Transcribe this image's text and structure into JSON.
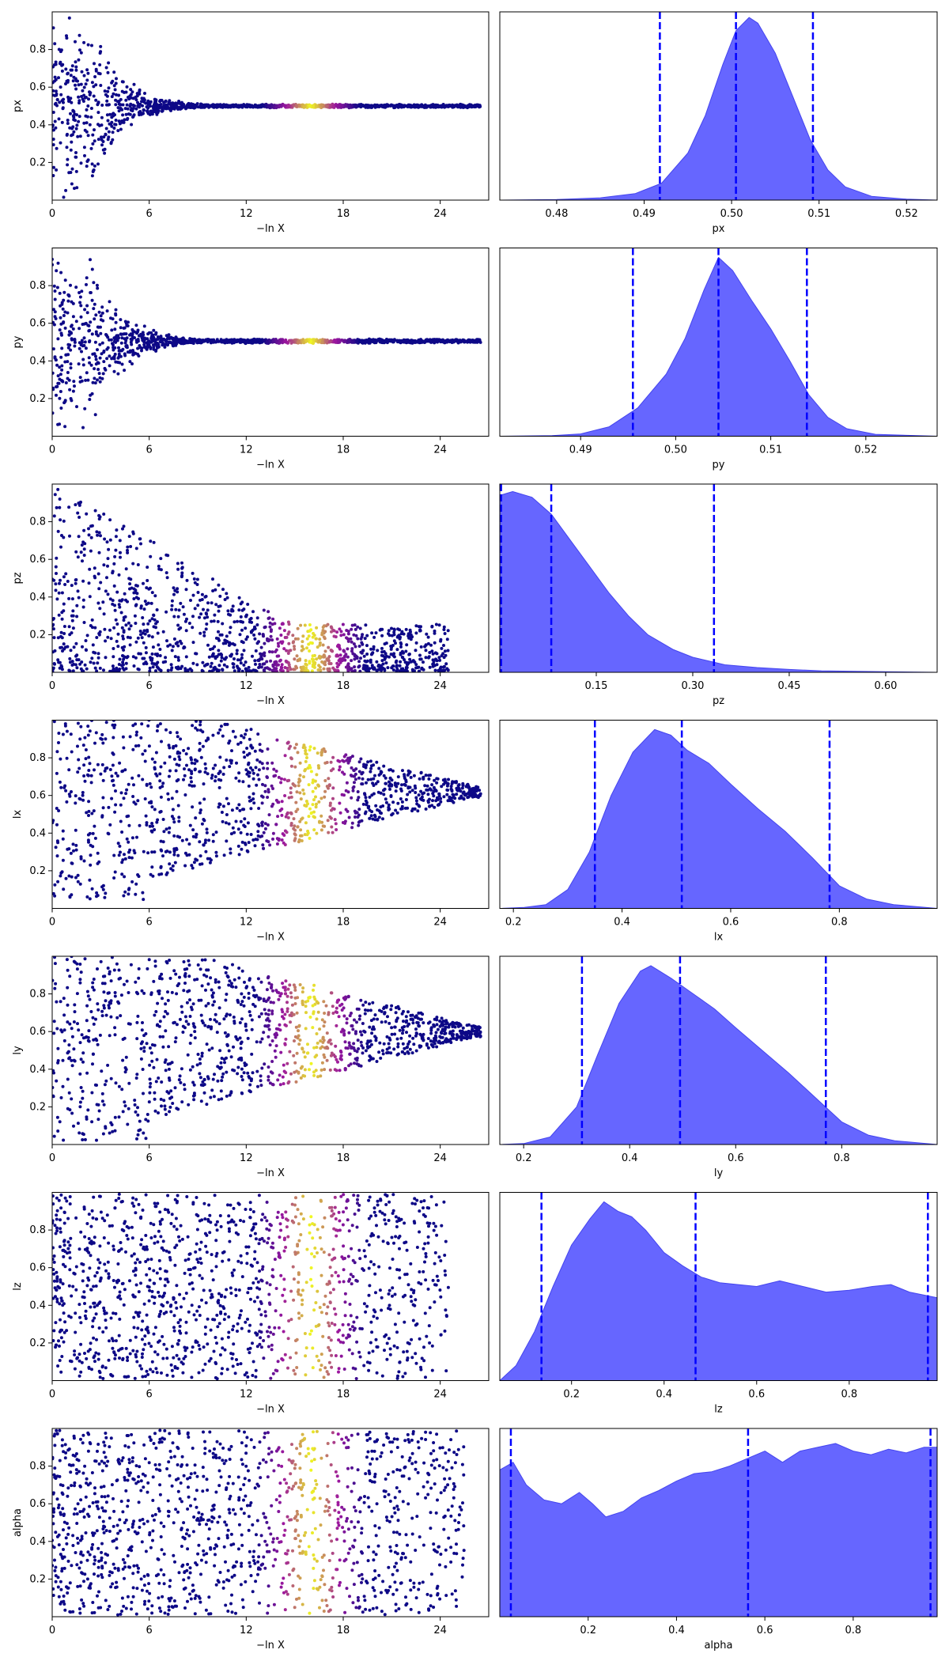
{
  "chart_data": {
    "type": "trace_plot_grid",
    "colors": {
      "kde_fill": "#6666ff",
      "kde_edge": "#4444ee",
      "quantile_line": "#0000ff",
      "scatter_low": "#0d0887",
      "scatter_mid": "#9c179e",
      "scatter_high": "#f0f921",
      "axis": "#000000"
    },
    "scatter_xlabel": "−ln X",
    "scatter_xticks": [
      "0",
      "6",
      "12",
      "18",
      "24"
    ],
    "scatter_xlim": [
      0,
      27
    ],
    "scatter_yticks": [
      "0.2",
      "0.4",
      "0.6",
      "0.8"
    ],
    "scatter_ylim": [
      0,
      1
    ],
    "rows": [
      {
        "param": "px",
        "scatter_shape": "funnel",
        "scatter": {
          "converge": 0.5,
          "end_width": 0.01,
          "x_end": 26.5,
          "hot_center": 16.0,
          "hot_width": 1.5
        },
        "kde_xlim": [
          0.4735,
          0.5235
        ],
        "kde_xticks": [
          "0.48",
          "0.49",
          "0.50",
          "0.51",
          "0.52"
        ],
        "kde_xtick_values": [
          0.48,
          0.49,
          0.5,
          0.51,
          0.52
        ],
        "kde_quantiles": [
          0.4918,
          0.5005,
          0.5093
        ],
        "kde_points": [
          [
            0.4735,
            0.0
          ],
          [
            0.48,
            0.003
          ],
          [
            0.485,
            0.012
          ],
          [
            0.489,
            0.035
          ],
          [
            0.492,
            0.09
          ],
          [
            0.495,
            0.25
          ],
          [
            0.497,
            0.45
          ],
          [
            0.499,
            0.72
          ],
          [
            0.5005,
            0.9
          ],
          [
            0.502,
            0.97
          ],
          [
            0.503,
            0.94
          ],
          [
            0.505,
            0.78
          ],
          [
            0.507,
            0.55
          ],
          [
            0.509,
            0.32
          ],
          [
            0.511,
            0.16
          ],
          [
            0.513,
            0.07
          ],
          [
            0.516,
            0.02
          ],
          [
            0.52,
            0.005
          ],
          [
            0.5235,
            0.0
          ]
        ]
      },
      {
        "param": "py",
        "scatter_shape": "funnel",
        "scatter": {
          "converge": 0.505,
          "end_width": 0.012,
          "x_end": 26.5,
          "hot_center": 16.0,
          "hot_width": 1.5
        },
        "kde_xlim": [
          0.4815,
          0.5275
        ],
        "kde_xticks": [
          "0.49",
          "0.50",
          "0.51",
          "0.52"
        ],
        "kde_xtick_values": [
          0.49,
          0.5,
          0.51,
          0.52
        ],
        "kde_quantiles": [
          0.4955,
          0.5045,
          0.5138
        ],
        "kde_points": [
          [
            0.4815,
            0.0
          ],
          [
            0.487,
            0.003
          ],
          [
            0.49,
            0.012
          ],
          [
            0.493,
            0.05
          ],
          [
            0.496,
            0.15
          ],
          [
            0.499,
            0.33
          ],
          [
            0.501,
            0.52
          ],
          [
            0.503,
            0.78
          ],
          [
            0.5045,
            0.95
          ],
          [
            0.506,
            0.88
          ],
          [
            0.508,
            0.72
          ],
          [
            0.51,
            0.57
          ],
          [
            0.512,
            0.4
          ],
          [
            0.514,
            0.22
          ],
          [
            0.516,
            0.1
          ],
          [
            0.518,
            0.04
          ],
          [
            0.521,
            0.01
          ],
          [
            0.5275,
            0.0
          ]
        ]
      },
      {
        "param": "pz",
        "scatter_shape": "decreasing",
        "scatter": {
          "x_end": 24.5,
          "hot_center": 16.0,
          "hot_width": 1.7
        },
        "kde_xlim": [
          0.0,
          0.68
        ],
        "kde_xticks": [
          "0.15",
          "0.30",
          "0.45",
          "0.60"
        ],
        "kde_xtick_values": [
          0.15,
          0.3,
          0.45,
          0.6
        ],
        "kde_quantiles": [
          0.002,
          0.08,
          0.333
        ],
        "kde_points": [
          [
            0.0,
            0.94
          ],
          [
            0.02,
            0.96
          ],
          [
            0.05,
            0.93
          ],
          [
            0.08,
            0.84
          ],
          [
            0.11,
            0.7
          ],
          [
            0.14,
            0.56
          ],
          [
            0.17,
            0.42
          ],
          [
            0.2,
            0.3
          ],
          [
            0.23,
            0.2
          ],
          [
            0.27,
            0.12
          ],
          [
            0.3,
            0.08
          ],
          [
            0.35,
            0.04
          ],
          [
            0.4,
            0.025
          ],
          [
            0.45,
            0.015
          ],
          [
            0.5,
            0.008
          ],
          [
            0.6,
            0.003
          ],
          [
            0.68,
            0.0
          ]
        ]
      },
      {
        "param": "lx",
        "scatter_shape": "wedge",
        "scatter": {
          "center": 0.62,
          "x_end": 26.5,
          "hot_center": 16.0,
          "hot_width": 1.7
        },
        "kde_xlim": [
          0.175,
          0.98
        ],
        "kde_xticks": [
          "0.2",
          "0.4",
          "0.6",
          "0.8"
        ],
        "kde_xtick_values": [
          0.2,
          0.4,
          0.6,
          0.8
        ],
        "kde_quantiles": [
          0.35,
          0.51,
          0.782
        ],
        "kde_points": [
          [
            0.175,
            0.0
          ],
          [
            0.22,
            0.005
          ],
          [
            0.26,
            0.02
          ],
          [
            0.3,
            0.1
          ],
          [
            0.34,
            0.3
          ],
          [
            0.38,
            0.6
          ],
          [
            0.42,
            0.83
          ],
          [
            0.46,
            0.95
          ],
          [
            0.49,
            0.92
          ],
          [
            0.52,
            0.84
          ],
          [
            0.56,
            0.77
          ],
          [
            0.6,
            0.66
          ],
          [
            0.65,
            0.53
          ],
          [
            0.7,
            0.41
          ],
          [
            0.75,
            0.27
          ],
          [
            0.8,
            0.12
          ],
          [
            0.85,
            0.05
          ],
          [
            0.9,
            0.02
          ],
          [
            0.98,
            0.0
          ]
        ]
      },
      {
        "param": "ly",
        "scatter_shape": "wedge",
        "scatter": {
          "center": 0.6,
          "x_end": 26.5,
          "hot_center": 16.0,
          "hot_width": 1.7
        },
        "kde_xlim": [
          0.155,
          0.98
        ],
        "kde_xticks": [
          "0.2",
          "0.4",
          "0.6",
          "0.8"
        ],
        "kde_xtick_values": [
          0.2,
          0.4,
          0.6,
          0.8
        ],
        "kde_quantiles": [
          0.31,
          0.495,
          0.77
        ],
        "kde_points": [
          [
            0.155,
            0.0
          ],
          [
            0.2,
            0.005
          ],
          [
            0.25,
            0.04
          ],
          [
            0.3,
            0.2
          ],
          [
            0.34,
            0.48
          ],
          [
            0.38,
            0.75
          ],
          [
            0.42,
            0.92
          ],
          [
            0.44,
            0.95
          ],
          [
            0.48,
            0.88
          ],
          [
            0.52,
            0.8
          ],
          [
            0.56,
            0.72
          ],
          [
            0.6,
            0.62
          ],
          [
            0.65,
            0.5
          ],
          [
            0.7,
            0.38
          ],
          [
            0.75,
            0.25
          ],
          [
            0.8,
            0.12
          ],
          [
            0.85,
            0.05
          ],
          [
            0.9,
            0.02
          ],
          [
            0.98,
            0.0
          ]
        ]
      },
      {
        "param": "lz",
        "scatter_shape": "band",
        "scatter": {
          "x_end": 24.5,
          "hot_center": 16.0,
          "hot_width": 1.7
        },
        "kde_xlim": [
          0.045,
          0.99
        ],
        "kde_xticks": [
          "0.2",
          "0.4",
          "0.6",
          "0.8"
        ],
        "kde_xtick_values": [
          0.2,
          0.4,
          0.6,
          0.8
        ],
        "kde_quantiles": [
          0.135,
          0.468,
          0.97
        ],
        "kde_points": [
          [
            0.045,
            0.0
          ],
          [
            0.08,
            0.08
          ],
          [
            0.12,
            0.26
          ],
          [
            0.16,
            0.5
          ],
          [
            0.2,
            0.72
          ],
          [
            0.24,
            0.86
          ],
          [
            0.27,
            0.95
          ],
          [
            0.3,
            0.9
          ],
          [
            0.33,
            0.87
          ],
          [
            0.36,
            0.8
          ],
          [
            0.4,
            0.68
          ],
          [
            0.44,
            0.61
          ],
          [
            0.48,
            0.55
          ],
          [
            0.52,
            0.52
          ],
          [
            0.56,
            0.51
          ],
          [
            0.6,
            0.5
          ],
          [
            0.65,
            0.53
          ],
          [
            0.7,
            0.5
          ],
          [
            0.75,
            0.47
          ],
          [
            0.8,
            0.48
          ],
          [
            0.85,
            0.5
          ],
          [
            0.89,
            0.51
          ],
          [
            0.93,
            0.47
          ],
          [
            0.99,
            0.44
          ]
        ]
      },
      {
        "param": "alpha",
        "scatter_shape": "band",
        "scatter": {
          "x_end": 25.5,
          "hot_center": 16.0,
          "hot_width": 1.7
        },
        "kde_xlim": [
          0.0,
          0.99
        ],
        "kde_xticks": [
          "0.2",
          "0.4",
          "0.6",
          "0.8"
        ],
        "kde_xtick_values": [
          0.2,
          0.4,
          0.6,
          0.8
        ],
        "kde_quantiles": [
          0.025,
          0.562,
          0.975
        ],
        "kde_points": [
          [
            0.0,
            0.78
          ],
          [
            0.03,
            0.82
          ],
          [
            0.06,
            0.7
          ],
          [
            0.1,
            0.62
          ],
          [
            0.14,
            0.6
          ],
          [
            0.18,
            0.66
          ],
          [
            0.21,
            0.6
          ],
          [
            0.24,
            0.53
          ],
          [
            0.28,
            0.56
          ],
          [
            0.32,
            0.63
          ],
          [
            0.36,
            0.67
          ],
          [
            0.4,
            0.72
          ],
          [
            0.44,
            0.76
          ],
          [
            0.48,
            0.77
          ],
          [
            0.52,
            0.8
          ],
          [
            0.56,
            0.84
          ],
          [
            0.6,
            0.88
          ],
          [
            0.64,
            0.82
          ],
          [
            0.68,
            0.88
          ],
          [
            0.72,
            0.9
          ],
          [
            0.76,
            0.92
          ],
          [
            0.8,
            0.88
          ],
          [
            0.84,
            0.86
          ],
          [
            0.88,
            0.89
          ],
          [
            0.92,
            0.87
          ],
          [
            0.96,
            0.9
          ],
          [
            0.99,
            0.9
          ]
        ]
      }
    ]
  }
}
